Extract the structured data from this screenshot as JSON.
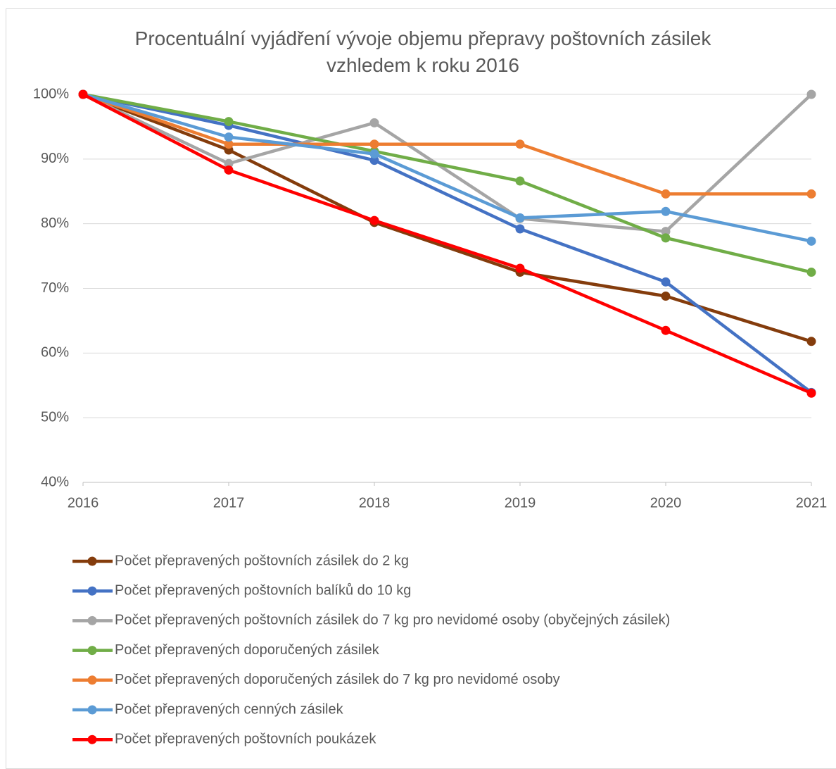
{
  "chart_data": {
    "type": "line",
    "title": "Procentuální vyjádření vývoje objemu přepravy poštovních zásilek vzhledem k roku 2016",
    "x": [
      2016,
      2017,
      2018,
      2019,
      2020,
      2021
    ],
    "xlim": [
      2016,
      2021
    ],
    "xticks": [
      2016,
      2017,
      2018,
      2019,
      2020,
      2021
    ],
    "ylim": [
      40,
      100
    ],
    "yticks": [
      {
        "value": 40,
        "label": "40%"
      },
      {
        "value": 50,
        "label": "50%"
      },
      {
        "value": 60,
        "label": "60%"
      },
      {
        "value": 70,
        "label": "70%"
      },
      {
        "value": 80,
        "label": "80%"
      },
      {
        "value": 90,
        "label": "90%"
      },
      {
        "value": 100,
        "label": "100%"
      }
    ],
    "grid": true,
    "legend": "bottom",
    "series": [
      {
        "name": "Počet přepravených poštovních zásilek do 2 kg",
        "color": "#843c0c",
        "values": [
          100,
          91.4,
          80.2,
          72.5,
          68.8,
          61.8
        ]
      },
      {
        "name": "Počet přepravených poštovních balíků do 10 kg",
        "color": "#4472c4",
        "values": [
          100,
          95.2,
          89.8,
          79.2,
          71.0,
          53.9
        ]
      },
      {
        "name": "Počet přepravených poštovních zásilek do 7 kg pro nevidomé osoby (obyčejných zásilek)",
        "color": "#a5a5a5",
        "values": [
          100,
          89.3,
          95.6,
          80.8,
          78.8,
          100
        ]
      },
      {
        "name": "Počet přepravených doporučených zásilek",
        "color": "#70ad47",
        "values": [
          100,
          95.8,
          91.2,
          86.6,
          77.8,
          72.5
        ]
      },
      {
        "name": "Počet přepravených doporučených zásilek do 7 kg pro nevidomé osoby",
        "color": "#ed7d31",
        "values": [
          100,
          92.3,
          92.3,
          92.3,
          84.6,
          84.6
        ]
      },
      {
        "name": "Počet přepravených cenných zásilek",
        "color": "#5b9bd5",
        "values": [
          100,
          93.4,
          90.8,
          80.9,
          81.9,
          77.3
        ]
      },
      {
        "name": "Počet přepravených poštovních poukázek",
        "color": "#ff0000",
        "values": [
          100,
          88.3,
          80.5,
          73.1,
          63.5,
          53.8
        ]
      }
    ]
  }
}
